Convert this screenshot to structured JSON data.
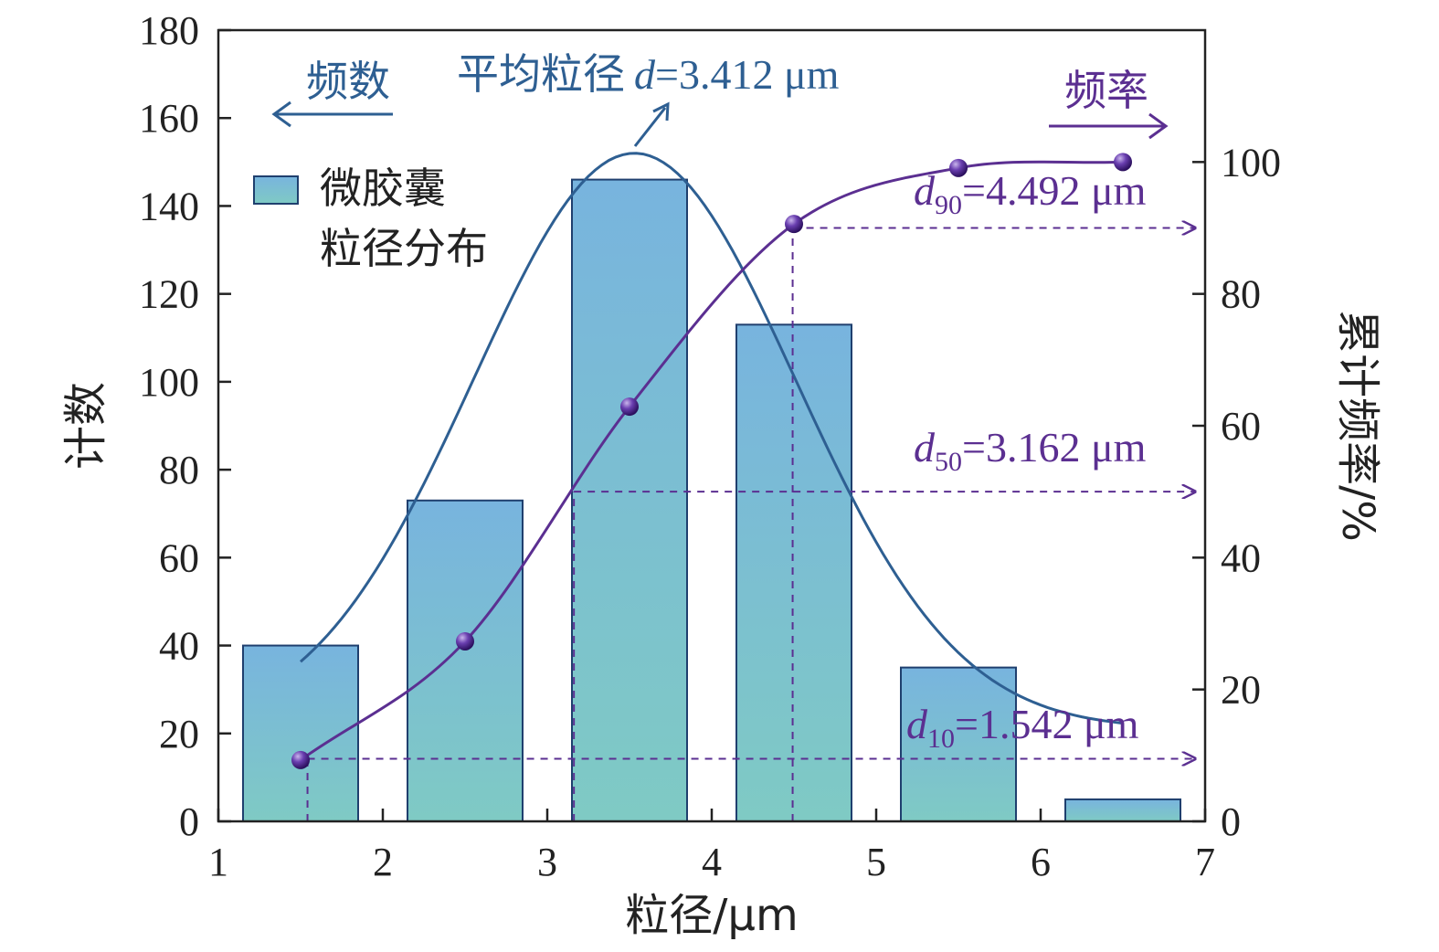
{
  "chart_data": {
    "type": "bar",
    "xlabel": "粒径/μm",
    "ylabel_left": "计数",
    "ylabel_right": "累计频率/%",
    "xlim": [
      1,
      7
    ],
    "ylim_left": [
      0,
      180
    ],
    "ylim_right": [
      0,
      120
    ],
    "x_ticks": [
      "1",
      "2",
      "3",
      "4",
      "5",
      "6",
      "7"
    ],
    "y_left_ticks": [
      "0",
      "20",
      "40",
      "60",
      "80",
      "100",
      "120",
      "140",
      "160",
      "180"
    ],
    "y_right_ticks": [
      "0",
      "20",
      "40",
      "60",
      "80",
      "100"
    ],
    "legend": {
      "label_line1": "微胶囊",
      "label_line2": "粒径分布",
      "position": "upper-left"
    },
    "bars": {
      "name": "微胶囊粒径分布",
      "centers": [
        1.5,
        2.5,
        3.5,
        4.5,
        5.5,
        6.5
      ],
      "width": 0.7,
      "values": [
        40,
        73,
        146,
        113,
        35,
        5
      ]
    },
    "fit_curve": {
      "type": "gaussian",
      "mean": 3.53,
      "sigma": 0.98,
      "amplitude": 131,
      "baseline": 21,
      "x_range": [
        1.5,
        6.5
      ]
    },
    "cumulative": {
      "x": [
        1.5,
        2.5,
        3.5,
        4.5,
        5.5,
        6.5
      ],
      "values": [
        9.3,
        27.3,
        62.9,
        90.6,
        99.1,
        100
      ],
      "marker_x": [
        1.5,
        2.5,
        3.5,
        4.5,
        5.5,
        6.5
      ]
    },
    "reference_lines": [
      {
        "id": "d10",
        "x": 1.542,
        "y_right": 9.5
      },
      {
        "id": "d50",
        "x": 3.162,
        "y_right": 50
      },
      {
        "id": "d90",
        "x": 4.492,
        "y_right": 90
      }
    ],
    "annotations": {
      "left_arrow_label": "频数",
      "right_arrow_label": "频率",
      "mean_text_prefix": "平均粒径",
      "mean_symbol": "d",
      "mean_value": "=3.412 μm",
      "d10_symbol": "d",
      "d10_sub": "10",
      "d10_value": "=1.542 μm",
      "d50_symbol": "d",
      "d50_sub": "50",
      "d50_value": "=3.162 μm",
      "d90_symbol": "d",
      "d90_sub": "90",
      "d90_value": "=4.492 μm"
    },
    "colors": {
      "bar_top": "#78b4de",
      "bar_bottom": "#7fcac4",
      "bar_edge": "#1f3f6e",
      "fit_curve": "#2e5f92",
      "cumulative": "#5b2f91",
      "text_blue": "#2e5f92",
      "text_purple": "#5b2f91"
    }
  }
}
